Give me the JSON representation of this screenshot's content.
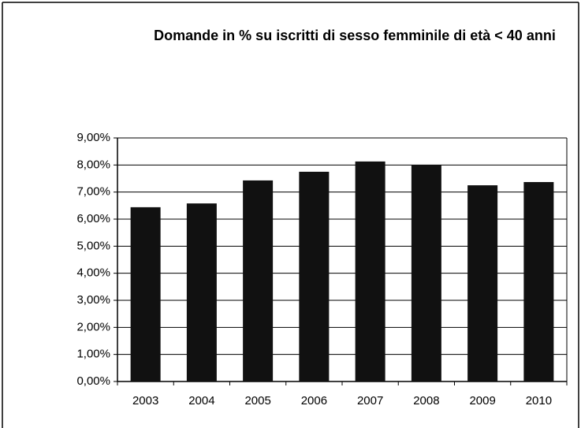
{
  "chart_data": {
    "type": "bar",
    "title": "Domande in % su iscritti di sesso femminile di età < 40 anni",
    "categories": [
      "2003",
      "2004",
      "2005",
      "2006",
      "2007",
      "2008",
      "2009",
      "2010"
    ],
    "values": [
      6.44,
      6.58,
      7.43,
      7.75,
      8.13,
      8.01,
      7.25,
      7.37
    ],
    "color": "#111111",
    "ylim": [
      0,
      9
    ],
    "yticks": [
      {
        "value": 0,
        "label": "0,00%"
      },
      {
        "value": 1,
        "label": "1,00%"
      },
      {
        "value": 2,
        "label": "2,00%"
      },
      {
        "value": 3,
        "label": "3,00%"
      },
      {
        "value": 4,
        "label": "4,00%"
      },
      {
        "value": 5,
        "label": "5,00%"
      },
      {
        "value": 6,
        "label": "6,00%"
      },
      {
        "value": 7,
        "label": "7,00%"
      },
      {
        "value": 8,
        "label": "8,00%"
      },
      {
        "value": 9,
        "label": "9,00%"
      }
    ],
    "grid": true
  }
}
